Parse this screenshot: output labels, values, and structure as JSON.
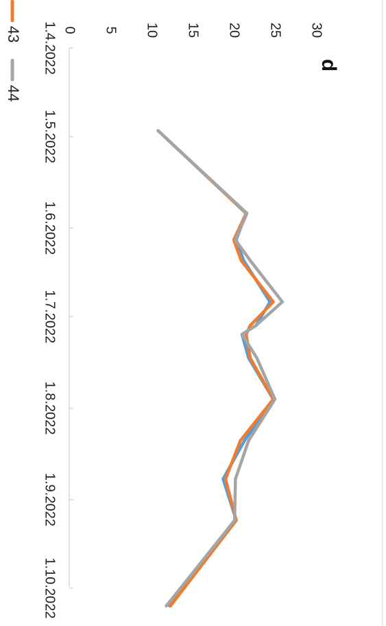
{
  "chart_data": {
    "type": "line",
    "title": "d",
    "xlabel": "",
    "ylabel": "",
    "x_tick_labels": [
      "1.4.2022",
      "1.5.2022",
      "1.6.2022",
      "1.7.2022",
      "1.8.2022",
      "1.9.2022",
      "1.10.2022"
    ],
    "y_tick_labels": [
      "0",
      "5",
      "10",
      "15",
      "20",
      "25",
      "30"
    ],
    "ylim": [
      0,
      30
    ],
    "grid": false,
    "legend": "bottom",
    "x_dates": [
      "2022-04-29",
      "2022-05-27",
      "2022-06-05",
      "2022-06-12",
      "2022-06-26",
      "2022-07-04",
      "2022-07-07",
      "2022-07-15",
      "2022-07-29",
      "2022-08-12",
      "2022-08-25",
      "2022-09-08",
      "2022-10-07"
    ],
    "series": [
      {
        "name": "",
        "color": "#5b9bd5",
        "values": [
          10.8,
          21.5,
          20.3,
          21.2,
          24.4,
          22.7,
          21.0,
          21.8,
          24.8,
          21.3,
          18.7,
          20.3,
          12.2
        ]
      },
      {
        "name": "43",
        "color": "#ed7d31",
        "values": [
          10.8,
          21.5,
          20.0,
          20.9,
          24.8,
          22.0,
          21.5,
          22.0,
          24.8,
          20.8,
          19.0,
          20.3,
          12.3
        ]
      },
      {
        "name": "44",
        "color": "#a5a5a5",
        "values": [
          10.8,
          21.6,
          20.2,
          22.0,
          25.9,
          22.7,
          21.0,
          22.8,
          25.0,
          21.8,
          20.2,
          20.1,
          11.8
        ]
      }
    ]
  }
}
